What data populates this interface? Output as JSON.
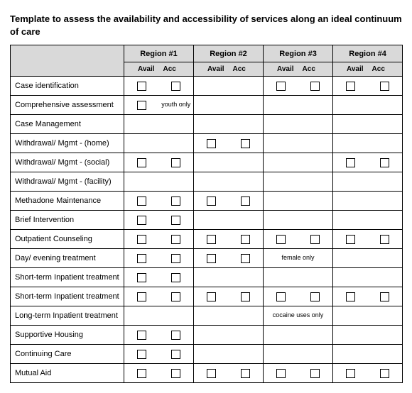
{
  "title": "Template to assess the availability and accessibility of services along an ideal continuum of care",
  "header": {
    "regions": [
      "Region #1",
      "Region #2",
      "Region #3",
      "Region #4"
    ],
    "sub": {
      "avail": "Avail",
      "acc": "Acc"
    }
  },
  "rows": [
    {
      "label": "Case identification",
      "cells": [
        {
          "avail": {
            "t": "box"
          },
          "acc": {
            "t": "box"
          }
        },
        {
          "avail": {
            "t": "blank"
          },
          "acc": {
            "t": "blank"
          }
        },
        {
          "avail": {
            "t": "box"
          },
          "acc": {
            "t": "box"
          }
        },
        {
          "avail": {
            "t": "box"
          },
          "acc": {
            "t": "box"
          }
        }
      ]
    },
    {
      "label": "Comprehensive assessment",
      "cells": [
        {
          "avail": {
            "t": "box"
          },
          "acc": {
            "t": "note",
            "text": "youth only"
          }
        },
        {
          "avail": {
            "t": "blank"
          },
          "acc": {
            "t": "blank"
          }
        },
        {
          "avail": {
            "t": "blank"
          },
          "acc": {
            "t": "blank"
          }
        },
        {
          "avail": {
            "t": "blank"
          },
          "acc": {
            "t": "blank"
          }
        }
      ]
    },
    {
      "label": "Case Management",
      "cells": [
        {
          "avail": {
            "t": "blank"
          },
          "acc": {
            "t": "blank"
          }
        },
        {
          "avail": {
            "t": "blank"
          },
          "acc": {
            "t": "blank"
          }
        },
        {
          "avail": {
            "t": "blank"
          },
          "acc": {
            "t": "blank"
          }
        },
        {
          "avail": {
            "t": "blank"
          },
          "acc": {
            "t": "blank"
          }
        }
      ]
    },
    {
      "label": "Withdrawal/ Mgmt - (home)",
      "cells": [
        {
          "avail": {
            "t": "blank"
          },
          "acc": {
            "t": "blank"
          }
        },
        {
          "avail": {
            "t": "box"
          },
          "acc": {
            "t": "box"
          }
        },
        {
          "avail": {
            "t": "blank"
          },
          "acc": {
            "t": "blank"
          }
        },
        {
          "avail": {
            "t": "blank"
          },
          "acc": {
            "t": "blank"
          }
        }
      ]
    },
    {
      "label": "Withdrawal/ Mgmt - (social)",
      "cells": [
        {
          "avail": {
            "t": "box"
          },
          "acc": {
            "t": "box"
          }
        },
        {
          "avail": {
            "t": "blank"
          },
          "acc": {
            "t": "blank"
          }
        },
        {
          "avail": {
            "t": "blank"
          },
          "acc": {
            "t": "blank"
          }
        },
        {
          "avail": {
            "t": "box"
          },
          "acc": {
            "t": "box"
          }
        }
      ]
    },
    {
      "label": "Withdrawal/ Mgmt - (facility)",
      "cells": [
        {
          "avail": {
            "t": "blank"
          },
          "acc": {
            "t": "blank"
          }
        },
        {
          "avail": {
            "t": "blank"
          },
          "acc": {
            "t": "blank"
          }
        },
        {
          "avail": {
            "t": "blank"
          },
          "acc": {
            "t": "blank"
          }
        },
        {
          "avail": {
            "t": "blank"
          },
          "acc": {
            "t": "blank"
          }
        }
      ]
    },
    {
      "label": "Methadone Maintenance",
      "cells": [
        {
          "avail": {
            "t": "box"
          },
          "acc": {
            "t": "box"
          }
        },
        {
          "avail": {
            "t": "box"
          },
          "acc": {
            "t": "box"
          }
        },
        {
          "avail": {
            "t": "blank"
          },
          "acc": {
            "t": "blank"
          }
        },
        {
          "avail": {
            "t": "blank"
          },
          "acc": {
            "t": "blank"
          }
        }
      ]
    },
    {
      "label": "Brief Intervention",
      "cells": [
        {
          "avail": {
            "t": "box"
          },
          "acc": {
            "t": "box"
          }
        },
        {
          "avail": {
            "t": "blank"
          },
          "acc": {
            "t": "blank"
          }
        },
        {
          "avail": {
            "t": "blank"
          },
          "acc": {
            "t": "blank"
          }
        },
        {
          "avail": {
            "t": "blank"
          },
          "acc": {
            "t": "blank"
          }
        }
      ]
    },
    {
      "label": "Outpatient Counseling",
      "cells": [
        {
          "avail": {
            "t": "box"
          },
          "acc": {
            "t": "box"
          }
        },
        {
          "avail": {
            "t": "box"
          },
          "acc": {
            "t": "box"
          }
        },
        {
          "avail": {
            "t": "box"
          },
          "acc": {
            "t": "box"
          }
        },
        {
          "avail": {
            "t": "box"
          },
          "acc": {
            "t": "box"
          }
        }
      ]
    },
    {
      "label": "Day/ evening treatment",
      "cells": [
        {
          "avail": {
            "t": "box"
          },
          "acc": {
            "t": "box"
          }
        },
        {
          "avail": {
            "t": "box"
          },
          "acc": {
            "t": "box"
          }
        },
        {
          "merged": {
            "text": "female only"
          }
        },
        {
          "avail": {
            "t": "blank"
          },
          "acc": {
            "t": "blank"
          }
        }
      ]
    },
    {
      "label": "Short-term Inpatient treatment",
      "cells": [
        {
          "avail": {
            "t": "box"
          },
          "acc": {
            "t": "box"
          }
        },
        {
          "avail": {
            "t": "blank"
          },
          "acc": {
            "t": "blank"
          }
        },
        {
          "avail": {
            "t": "blank"
          },
          "acc": {
            "t": "blank"
          }
        },
        {
          "avail": {
            "t": "blank"
          },
          "acc": {
            "t": "blank"
          }
        }
      ]
    },
    {
      "label": "Short-term Inpatient treatment",
      "cells": [
        {
          "avail": {
            "t": "box"
          },
          "acc": {
            "t": "box"
          }
        },
        {
          "avail": {
            "t": "box"
          },
          "acc": {
            "t": "box"
          }
        },
        {
          "avail": {
            "t": "box"
          },
          "acc": {
            "t": "box"
          }
        },
        {
          "avail": {
            "t": "box"
          },
          "acc": {
            "t": "box"
          }
        }
      ]
    },
    {
      "label": "Long-term Inpatient treatment",
      "cells": [
        {
          "avail": {
            "t": "blank"
          },
          "acc": {
            "t": "blank"
          }
        },
        {
          "avail": {
            "t": "blank"
          },
          "acc": {
            "t": "blank"
          }
        },
        {
          "merged": {
            "text": "cocaine uses only"
          }
        },
        {
          "avail": {
            "t": "blank"
          },
          "acc": {
            "t": "blank"
          }
        }
      ]
    },
    {
      "label": "Supportive Housing",
      "cells": [
        {
          "avail": {
            "t": "box"
          },
          "acc": {
            "t": "box"
          }
        },
        {
          "avail": {
            "t": "blank"
          },
          "acc": {
            "t": "blank"
          }
        },
        {
          "avail": {
            "t": "blank"
          },
          "acc": {
            "t": "blank"
          }
        },
        {
          "avail": {
            "t": "blank"
          },
          "acc": {
            "t": "blank"
          }
        }
      ]
    },
    {
      "label": "Continuing Care",
      "cells": [
        {
          "avail": {
            "t": "box"
          },
          "acc": {
            "t": "box"
          }
        },
        {
          "avail": {
            "t": "blank"
          },
          "acc": {
            "t": "blank"
          }
        },
        {
          "avail": {
            "t": "blank"
          },
          "acc": {
            "t": "blank"
          }
        },
        {
          "avail": {
            "t": "blank"
          },
          "acc": {
            "t": "blank"
          }
        }
      ]
    },
    {
      "label": "Mutual Aid",
      "cells": [
        {
          "avail": {
            "t": "box"
          },
          "acc": {
            "t": "box"
          }
        },
        {
          "avail": {
            "t": "box"
          },
          "acc": {
            "t": "box"
          }
        },
        {
          "avail": {
            "t": "box"
          },
          "acc": {
            "t": "box"
          }
        },
        {
          "avail": {
            "t": "box"
          },
          "acc": {
            "t": "box"
          }
        }
      ]
    }
  ],
  "style": {
    "header_bg": "#d9d9d9",
    "border_color": "#000000",
    "box_border": "#000000",
    "font_family": "Arial",
    "title_fontsize": 13,
    "body_fontsize": 11,
    "note_fontsize": 9
  }
}
